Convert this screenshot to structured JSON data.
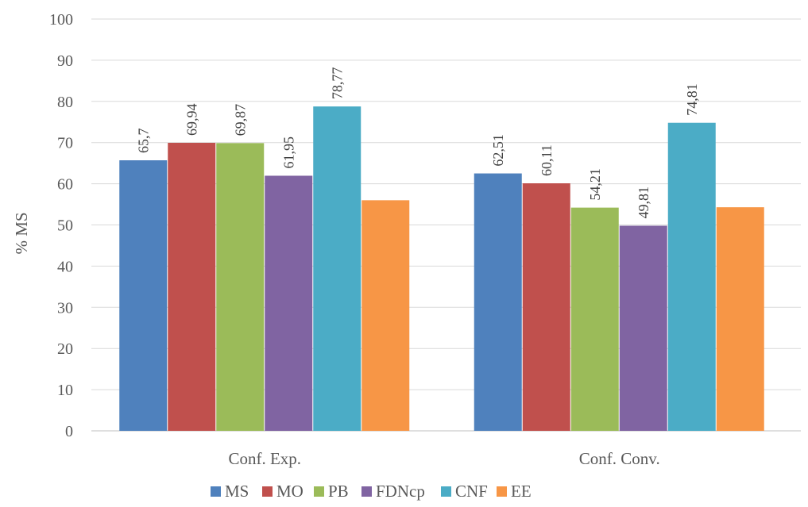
{
  "chart_data": {
    "type": "bar",
    "ylabel": "% MS",
    "xlabel": "",
    "ylim": [
      0,
      100
    ],
    "yticks": [
      "0",
      "10",
      "20",
      "30",
      "40",
      "50",
      "60",
      "70",
      "80",
      "90",
      "100"
    ],
    "grid": true,
    "legend_position": "bottom",
    "categories": [
      "Conf. Exp.",
      "Conf. Conv."
    ],
    "series": [
      {
        "name": "MS",
        "color": "#4f81bd",
        "values": [
          65.7,
          62.51
        ],
        "labels": [
          "65,7",
          "62,51"
        ]
      },
      {
        "name": "MO",
        "color": "#c0504d",
        "values": [
          69.94,
          60.11
        ],
        "labels": [
          "69,94",
          "60,11"
        ]
      },
      {
        "name": "PB",
        "color": "#9bbb59",
        "values": [
          69.87,
          54.21
        ],
        "labels": [
          "69,87",
          "54,21"
        ]
      },
      {
        "name": "FDNcp",
        "color": "#8064a2",
        "values": [
          61.95,
          49.81
        ],
        "labels": [
          "61,95",
          "49,81"
        ]
      },
      {
        "name": "CNF",
        "color": "#4bacc6",
        "values": [
          78.77,
          74.81
        ],
        "labels": [
          "78,77",
          "74,81"
        ]
      },
      {
        "name": "EE",
        "color": "#f79646",
        "values": [
          56.0,
          54.3
        ],
        "labels": [
          "",
          ""
        ]
      }
    ]
  }
}
